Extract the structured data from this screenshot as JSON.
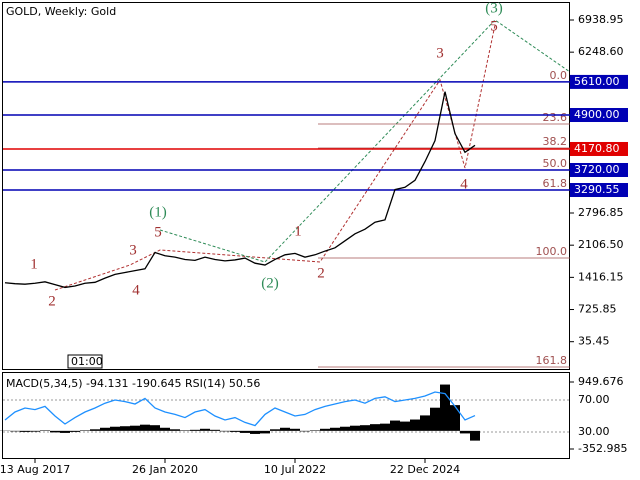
{
  "chart_data": [
    {
      "type": "line",
      "title": "GOLD, Weekly:  Gold",
      "time_label": "01:00",
      "categories": [
        null,
        null,
        null,
        "13 Aug 2017",
        null,
        null,
        null,
        null,
        null,
        null,
        null,
        null,
        null,
        null,
        null,
        null,
        "26 Jan 2020",
        null,
        null,
        null,
        null,
        null,
        null,
        null,
        null,
        null,
        null,
        null,
        null,
        "10 Jul 2022",
        null,
        null,
        null,
        null,
        null,
        null,
        null,
        null,
        null,
        null,
        null,
        null,
        "22 Dec 2024",
        null,
        null,
        null,
        null,
        null
      ],
      "values": [
        1300,
        1280,
        1270,
        1290,
        1320,
        1260,
        1200,
        1230,
        1290,
        1310,
        1400,
        1480,
        1520,
        1560,
        1600,
        1950,
        1880,
        1850,
        1800,
        1780,
        1850,
        1800,
        1770,
        1790,
        1830,
        1720,
        1680,
        1800,
        1900,
        1930,
        1850,
        1900,
        1980,
        2050,
        2200,
        2350,
        2450,
        2600,
        2650,
        3300,
        3350,
        3500,
        3900,
        4350,
        5400,
        4500,
        4100,
        4250
      ],
      "color": "#000000",
      "ylim": [
        -572,
        7368
      ],
      "yticks": [
        6938.95,
        {
          "value": 6248.6,
          "label": "6248.60"
        },
        2796.85,
        {
          "value": 2106.5,
          "label": "2106.50"
        },
        1416.15,
        725.85,
        35.45
      ],
      "levels": [
        {
          "value": 5610,
          "label": "5610.00",
          "color": "#0000b4"
        },
        {
          "value": 4900,
          "label": "4900.00",
          "color": "#0000b4"
        },
        {
          "value": 4170.8,
          "label": "4170.80",
          "color": "#e00000"
        },
        {
          "value": 3720,
          "label": "3720.00",
          "color": "#0000b4"
        },
        {
          "value": 3290.55,
          "label": "3290.55",
          "color": "#0000b4"
        }
      ],
      "fib_levels": [
        {
          "value": 5610,
          "label": "0.0"
        },
        {
          "value": 4707,
          "label": "23.6"
        },
        {
          "value": 4192,
          "label": "38.2"
        },
        {
          "value": 3720,
          "label": "50.0"
        },
        {
          "value": 3291,
          "label": "61.8"
        },
        {
          "value": 1831,
          "label": "100.0"
        },
        {
          "value": -508,
          "label": "161.8"
        }
      ],
      "wave_labels": [
        "1",
        "2",
        "3",
        "4",
        "5",
        "1",
        "2",
        "3",
        "4",
        "5"
      ],
      "wave_labels_green": [
        "(1)",
        "(2)",
        "(3)"
      ]
    },
    {
      "type": "macd",
      "label": "MACD(5,34,5) -94.131 -190.645 RSI(14) 50.56",
      "series": [
        {
          "name": "MACD",
          "color": "#000000",
          "values": [
            5,
            -10,
            -20,
            -15,
            10,
            -30,
            -40,
            -20,
            10,
            30,
            60,
            80,
            90,
            100,
            120,
            110,
            60,
            30,
            10,
            20,
            40,
            20,
            -10,
            -20,
            -40,
            -60,
            -50,
            30,
            60,
            40,
            -10,
            10,
            40,
            60,
            80,
            100,
            110,
            130,
            140,
            200,
            180,
            220,
            300,
            450,
            900,
            500,
            -50,
            -190
          ]
        },
        {
          "name": "RSI",
          "color": "#1e90ff",
          "axis": "y2",
          "values": [
            45,
            55,
            60,
            58,
            62,
            50,
            40,
            48,
            55,
            60,
            66,
            70,
            68,
            65,
            72,
            60,
            55,
            52,
            48,
            55,
            58,
            50,
            45,
            48,
            42,
            38,
            52,
            60,
            55,
            50,
            52,
            58,
            62,
            65,
            68,
            70,
            66,
            72,
            74,
            68,
            70,
            72,
            75,
            80,
            78,
            62,
            45,
            50.56
          ]
        }
      ],
      "ylim": [
        -352.985,
        949.676
      ],
      "yticks": [
        949.676,
        -352.985
      ],
      "y2lim": [
        8.75,
        92.5
      ],
      "y2ticks": [
        {
          "value": 70,
          "label": "70.00"
        },
        {
          "value": 30,
          "label": "30.00"
        }
      ]
    }
  ]
}
